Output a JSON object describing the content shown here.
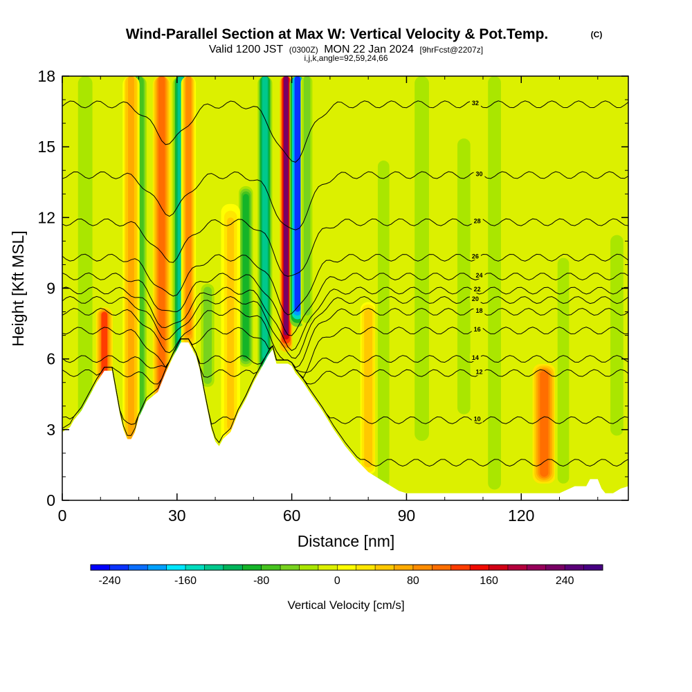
{
  "chart_data": {
    "type": "heatmap",
    "title": "Wind-Parallel Section at Max W: Vertical Velocity & Pot.Temp.",
    "title_mark": "(C)",
    "subtitle": {
      "prefix": "Valid 1200 JST",
      "utc": "(0300Z)",
      "date": "MON 22 Jan 2024",
      "forecast": "[9hrFcst@2207z]"
    },
    "info": "i,j,k,angle=92,59,24,66",
    "xlabel": "Distance [nm]",
    "ylabel": "Height [Kft MSL]",
    "xlim": [
      0,
      148
    ],
    "ylim": [
      0,
      18
    ],
    "x_ticks": [
      "0",
      "30",
      "60",
      "90",
      "120"
    ],
    "x_tick_values": [
      0,
      30,
      60,
      90,
      120
    ],
    "y_ticks": [
      "0",
      "3",
      "6",
      "9",
      "12",
      "15",
      "18"
    ],
    "y_tick_values": [
      0,
      3,
      6,
      9,
      12,
      15,
      18
    ],
    "colorbar": {
      "label": "Vertical Velocity [cm/s]",
      "min": -260,
      "max": 280,
      "step": 20,
      "tick_labels": [
        "-240",
        "-160",
        "-80",
        "0",
        "80",
        "160",
        "240"
      ],
      "tick_values": [
        -240,
        -160,
        -80,
        0,
        80,
        160,
        240
      ],
      "colors": [
        "#0000ff",
        "#0a32ff",
        "#0a6eff",
        "#00a0ff",
        "#00e6ff",
        "#00dcbe",
        "#00c88c",
        "#00b45a",
        "#14b428",
        "#46c31e",
        "#78d21e",
        "#aae600",
        "#dcf000",
        "#ffff00",
        "#ffe600",
        "#ffc800",
        "#ffaa00",
        "#ff8c00",
        "#ff6e00",
        "#ff3c00",
        "#f00a00",
        "#d20014",
        "#b4003c",
        "#96005a",
        "#780064",
        "#5a0078",
        "#460082"
      ]
    },
    "terrain": [
      [
        0,
        2.9
      ],
      [
        2,
        3.1
      ],
      [
        3,
        3.4
      ],
      [
        5,
        3.8
      ],
      [
        7,
        4.4
      ],
      [
        9,
        5.0
      ],
      [
        11,
        5.5
      ],
      [
        13,
        5.5
      ],
      [
        14,
        4.6
      ],
      [
        15,
        3.7
      ],
      [
        16,
        3.0
      ],
      [
        17,
        2.6
      ],
      [
        18,
        2.6
      ],
      [
        19,
        2.9
      ],
      [
        20,
        3.5
      ],
      [
        22,
        4.2
      ],
      [
        25,
        4.6
      ],
      [
        27,
        5.4
      ],
      [
        29,
        6.1
      ],
      [
        31,
        6.7
      ],
      [
        33,
        6.7
      ],
      [
        35,
        6.1
      ],
      [
        36,
        5.5
      ],
      [
        37,
        4.6
      ],
      [
        38,
        3.8
      ],
      [
        39,
        3.0
      ],
      [
        40,
        2.5
      ],
      [
        41,
        2.3
      ],
      [
        42,
        2.6
      ],
      [
        44,
        2.9
      ],
      [
        46,
        3.7
      ],
      [
        48,
        4.3
      ],
      [
        50,
        5.0
      ],
      [
        52,
        5.6
      ],
      [
        54,
        6.2
      ],
      [
        55,
        6.4
      ],
      [
        56,
        5.8
      ],
      [
        59,
        5.8
      ],
      [
        60,
        5.7
      ],
      [
        61,
        5.4
      ],
      [
        63,
        5.0
      ],
      [
        65,
        4.5
      ],
      [
        68,
        3.8
      ],
      [
        71,
        3.0
      ],
      [
        74,
        2.3
      ],
      [
        77,
        1.7
      ],
      [
        80,
        1.2
      ],
      [
        83,
        0.9
      ],
      [
        86,
        0.6
      ],
      [
        88,
        0.4
      ],
      [
        90,
        0.3
      ],
      [
        100,
        0.3
      ],
      [
        110,
        0.3
      ],
      [
        130,
        0.3
      ],
      [
        134,
        0.6
      ],
      [
        137,
        0.6
      ],
      [
        138,
        0.9
      ],
      [
        140,
        0.9
      ],
      [
        141,
        0.5
      ],
      [
        142,
        0.3
      ],
      [
        144,
        0.3
      ],
      [
        146,
        0.5
      ],
      [
        148,
        0.6
      ]
    ],
    "w_structures": [
      {
        "x": 11,
        "width": 1.6,
        "w": 120,
        "bottom": 4.0,
        "top": 8.0
      },
      {
        "x": 20,
        "width": 1.8,
        "w": -80,
        "bottom": 2.5,
        "top": 18.0
      },
      {
        "x": 26,
        "width": 1.7,
        "w": 100,
        "bottom": 4.5,
        "top": 18.0
      },
      {
        "x": 31,
        "width": 1.6,
        "w": -140,
        "bottom": 6.5,
        "top": 18.0
      },
      {
        "x": 33,
        "width": 1.4,
        "w": 80,
        "bottom": 7.0,
        "top": 18.0
      },
      {
        "x": 18,
        "width": 1.6,
        "w": 70,
        "bottom": 2.5,
        "top": 18.0
      },
      {
        "x": 38,
        "width": 1.5,
        "w": -60,
        "bottom": 5.0,
        "top": 9.0
      },
      {
        "x": 48,
        "width": 1.6,
        "w": -90,
        "bottom": 6.0,
        "top": 13.0
      },
      {
        "x": 53,
        "width": 1.4,
        "w": -140,
        "bottom": 6.0,
        "top": 18.0
      },
      {
        "x": 58.5,
        "width": 1.2,
        "w": 220,
        "bottom": 7.0,
        "top": 18.0
      },
      {
        "x": 61.5,
        "width": 1.5,
        "w": -240,
        "bottom": 8.0,
        "top": 18.0
      },
      {
        "x": 64,
        "width": 1.2,
        "w": -60,
        "bottom": 8.0,
        "top": 18.0
      },
      {
        "x": 44,
        "width": 1.8,
        "w": 40,
        "bottom": 3.0,
        "top": 12.0
      },
      {
        "x": 6,
        "width": 2.0,
        "w": -40,
        "bottom": 3.5,
        "top": 18.0
      },
      {
        "x": 80,
        "width": 1.5,
        "w": 50,
        "bottom": 1.5,
        "top": 8.0
      },
      {
        "x": 84,
        "width": 1.6,
        "w": -40,
        "bottom": 1.0,
        "top": 14.0
      },
      {
        "x": 94,
        "width": 2.0,
        "w": -40,
        "bottom": 3.0,
        "top": 18.0
      },
      {
        "x": 105,
        "width": 1.8,
        "w": -40,
        "bottom": 4.0,
        "top": 15.0
      },
      {
        "x": 113,
        "width": 1.8,
        "w": -40,
        "bottom": 1.0,
        "top": 18.0
      },
      {
        "x": 126,
        "width": 2.2,
        "w": 110,
        "bottom": 1.0,
        "top": 5.5
      },
      {
        "x": 131,
        "width": 1.6,
        "w": -40,
        "bottom": 1.0,
        "top": 10.0
      },
      {
        "x": 145,
        "width": 1.8,
        "w": -40,
        "bottom": 3.0,
        "top": 11.0
      }
    ],
    "theta_contours": [
      {
        "level": 8,
        "label": "",
        "y_far": 1.6
      },
      {
        "level": 10,
        "label": "10",
        "y_far": 3.4
      },
      {
        "level": 12,
        "label": "12",
        "y_far": 5.4
      },
      {
        "level": 14,
        "label": "14",
        "y_far": 6.0
      },
      {
        "level": 16,
        "label": "16",
        "y_far": 7.2
      },
      {
        "level": 18,
        "label": "18",
        "y_far": 8.0
      },
      {
        "level": 20,
        "label": "20",
        "y_far": 8.5
      },
      {
        "level": 22,
        "label": "22",
        "y_far": 8.9
      },
      {
        "level": 24,
        "label": "24",
        "y_far": 9.5
      },
      {
        "level": 26,
        "label": "26",
        "y_far": 10.3
      },
      {
        "level": 28,
        "label": "28",
        "y_far": 11.8
      },
      {
        "level": 30,
        "label": "30",
        "y_far": 13.8
      },
      {
        "level": 32,
        "label": "32",
        "y_far": 16.8
      }
    ]
  }
}
